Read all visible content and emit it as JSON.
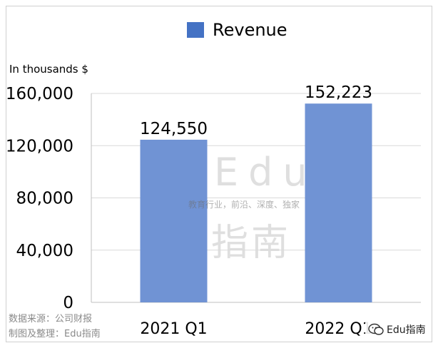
{
  "chart_data": {
    "type": "bar",
    "categories": [
      "2021 Q1",
      "2022 Q1"
    ],
    "series": [
      {
        "name": "Revenue",
        "values": [
          124550,
          152223
        ],
        "color": "#7093d4"
      }
    ],
    "data_labels": [
      "124,550",
      "152,223"
    ],
    "y_ticks": [
      0,
      40000,
      80000,
      120000,
      160000
    ],
    "y_tick_labels": [
      "0",
      "40,000",
      "80,000",
      "120,000",
      "160,000"
    ],
    "ylim": [
      0,
      160000
    ],
    "ylabel": "In thousands $",
    "xlabel": "",
    "grid": true,
    "legend": {
      "position": "top-center",
      "swatch_color": "#4472c4",
      "label": "Revenue"
    }
  },
  "footnotes": {
    "source": "数据来源：公司财报",
    "credit": "制图及整理：Edu指南"
  },
  "watermark": {
    "main": "Edu",
    "sub": "教育行业，前沿、深度、独家",
    "cn": "指南"
  },
  "brand": {
    "label": "Edu指南",
    "icon": "wechat-icon"
  }
}
